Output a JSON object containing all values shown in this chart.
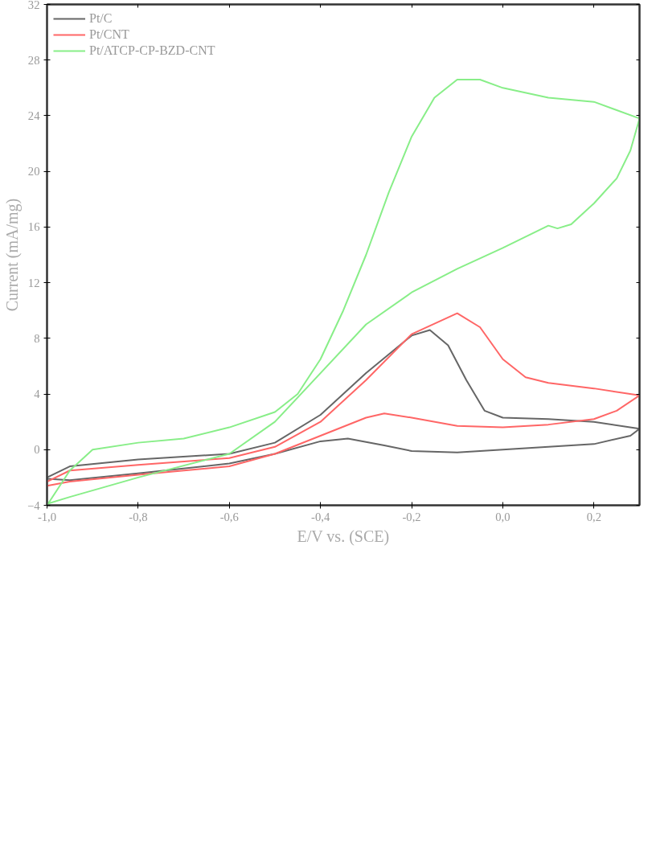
{
  "chart_data": {
    "type": "line",
    "xlabel": "E/V vs. (SCE)",
    "ylabel": "Current (mA/mg)",
    "xlim": [
      -1.0,
      0.3
    ],
    "ylim": [
      -4,
      32
    ],
    "xticks": [
      {
        "value": -1.0,
        "label": "-1,0"
      },
      {
        "value": -0.8,
        "label": "-0,8"
      },
      {
        "value": -0.6,
        "label": "-0,6"
      },
      {
        "value": -0.4,
        "label": "-0,4"
      },
      {
        "value": -0.2,
        "label": "-0,2"
      },
      {
        "value": 0.0,
        "label": "0,0"
      },
      {
        "value": 0.2,
        "label": "0,2"
      }
    ],
    "yticks": [
      -4,
      0,
      4,
      8,
      12,
      16,
      20,
      24,
      28,
      32
    ],
    "grid": false,
    "legend": "top left",
    "line_style": "solid",
    "marker": "none",
    "series": [
      {
        "name": "Pt/C",
        "color": "#666666",
        "x": [
          -1.0,
          -0.95,
          -0.8,
          -0.6,
          -0.5,
          -0.4,
          -0.3,
          -0.2,
          -0.16,
          -0.12,
          -0.08,
          -0.04,
          0.0,
          0.1,
          0.2,
          0.3,
          0.28,
          0.2,
          0.1,
          0.0,
          -0.1,
          -0.2,
          -0.26,
          -0.34,
          -0.4,
          -0.5,
          -0.6,
          -0.8,
          -0.95,
          -1.0
        ],
        "values": [
          -2.0,
          -1.2,
          -0.7,
          -0.3,
          0.5,
          2.5,
          5.5,
          8.2,
          8.6,
          7.5,
          5.0,
          2.8,
          2.3,
          2.2,
          2.0,
          1.5,
          1.0,
          0.4,
          0.2,
          0.0,
          -0.2,
          -0.1,
          0.3,
          0.8,
          0.6,
          -0.3,
          -1.0,
          -1.7,
          -2.2,
          -2.1
        ]
      },
      {
        "name": "Pt/CNT",
        "color": "#ff6666",
        "x": [
          -1.0,
          -0.95,
          -0.8,
          -0.6,
          -0.5,
          -0.4,
          -0.3,
          -0.2,
          -0.1,
          -0.05,
          0.0,
          0.05,
          0.1,
          0.2,
          0.3,
          0.25,
          0.2,
          0.1,
          0.0,
          -0.1,
          -0.2,
          -0.26,
          -0.3,
          -0.4,
          -0.5,
          -0.6,
          -0.8,
          -0.95,
          -1.0
        ],
        "values": [
          -2.3,
          -1.5,
          -1.1,
          -0.6,
          0.2,
          2.0,
          5.0,
          8.3,
          9.8,
          8.8,
          6.5,
          5.2,
          4.8,
          4.4,
          3.9,
          2.8,
          2.2,
          1.8,
          1.6,
          1.7,
          2.3,
          2.6,
          2.3,
          1.0,
          -0.3,
          -1.2,
          -1.8,
          -2.3,
          -2.6
        ]
      },
      {
        "name": "Pt/ATCP-CP-BZD-CNT",
        "color": "#88ee88",
        "x": [
          -1.0,
          -0.95,
          -0.9,
          -0.8,
          -0.7,
          -0.6,
          -0.5,
          -0.45,
          -0.4,
          -0.35,
          -0.3,
          -0.25,
          -0.2,
          -0.15,
          -0.1,
          -0.05,
          0.0,
          0.1,
          0.2,
          0.3,
          0.28,
          0.25,
          0.2,
          0.15,
          0.12,
          0.1,
          0.0,
          -0.1,
          -0.2,
          -0.3,
          -0.4,
          -0.5,
          -0.6,
          -0.8,
          -0.95,
          -1.0
        ],
        "values": [
          -4.0,
          -1.5,
          0.0,
          0.5,
          0.8,
          1.6,
          2.7,
          4.0,
          6.5,
          10.0,
          14.0,
          18.5,
          22.5,
          25.3,
          26.6,
          26.6,
          26.0,
          25.3,
          25.0,
          23.8,
          21.5,
          19.5,
          17.7,
          16.2,
          15.9,
          16.1,
          14.5,
          13.0,
          11.3,
          9.0,
          5.5,
          2.0,
          -0.3,
          -2.0,
          -3.4,
          -3.9
        ]
      }
    ]
  }
}
